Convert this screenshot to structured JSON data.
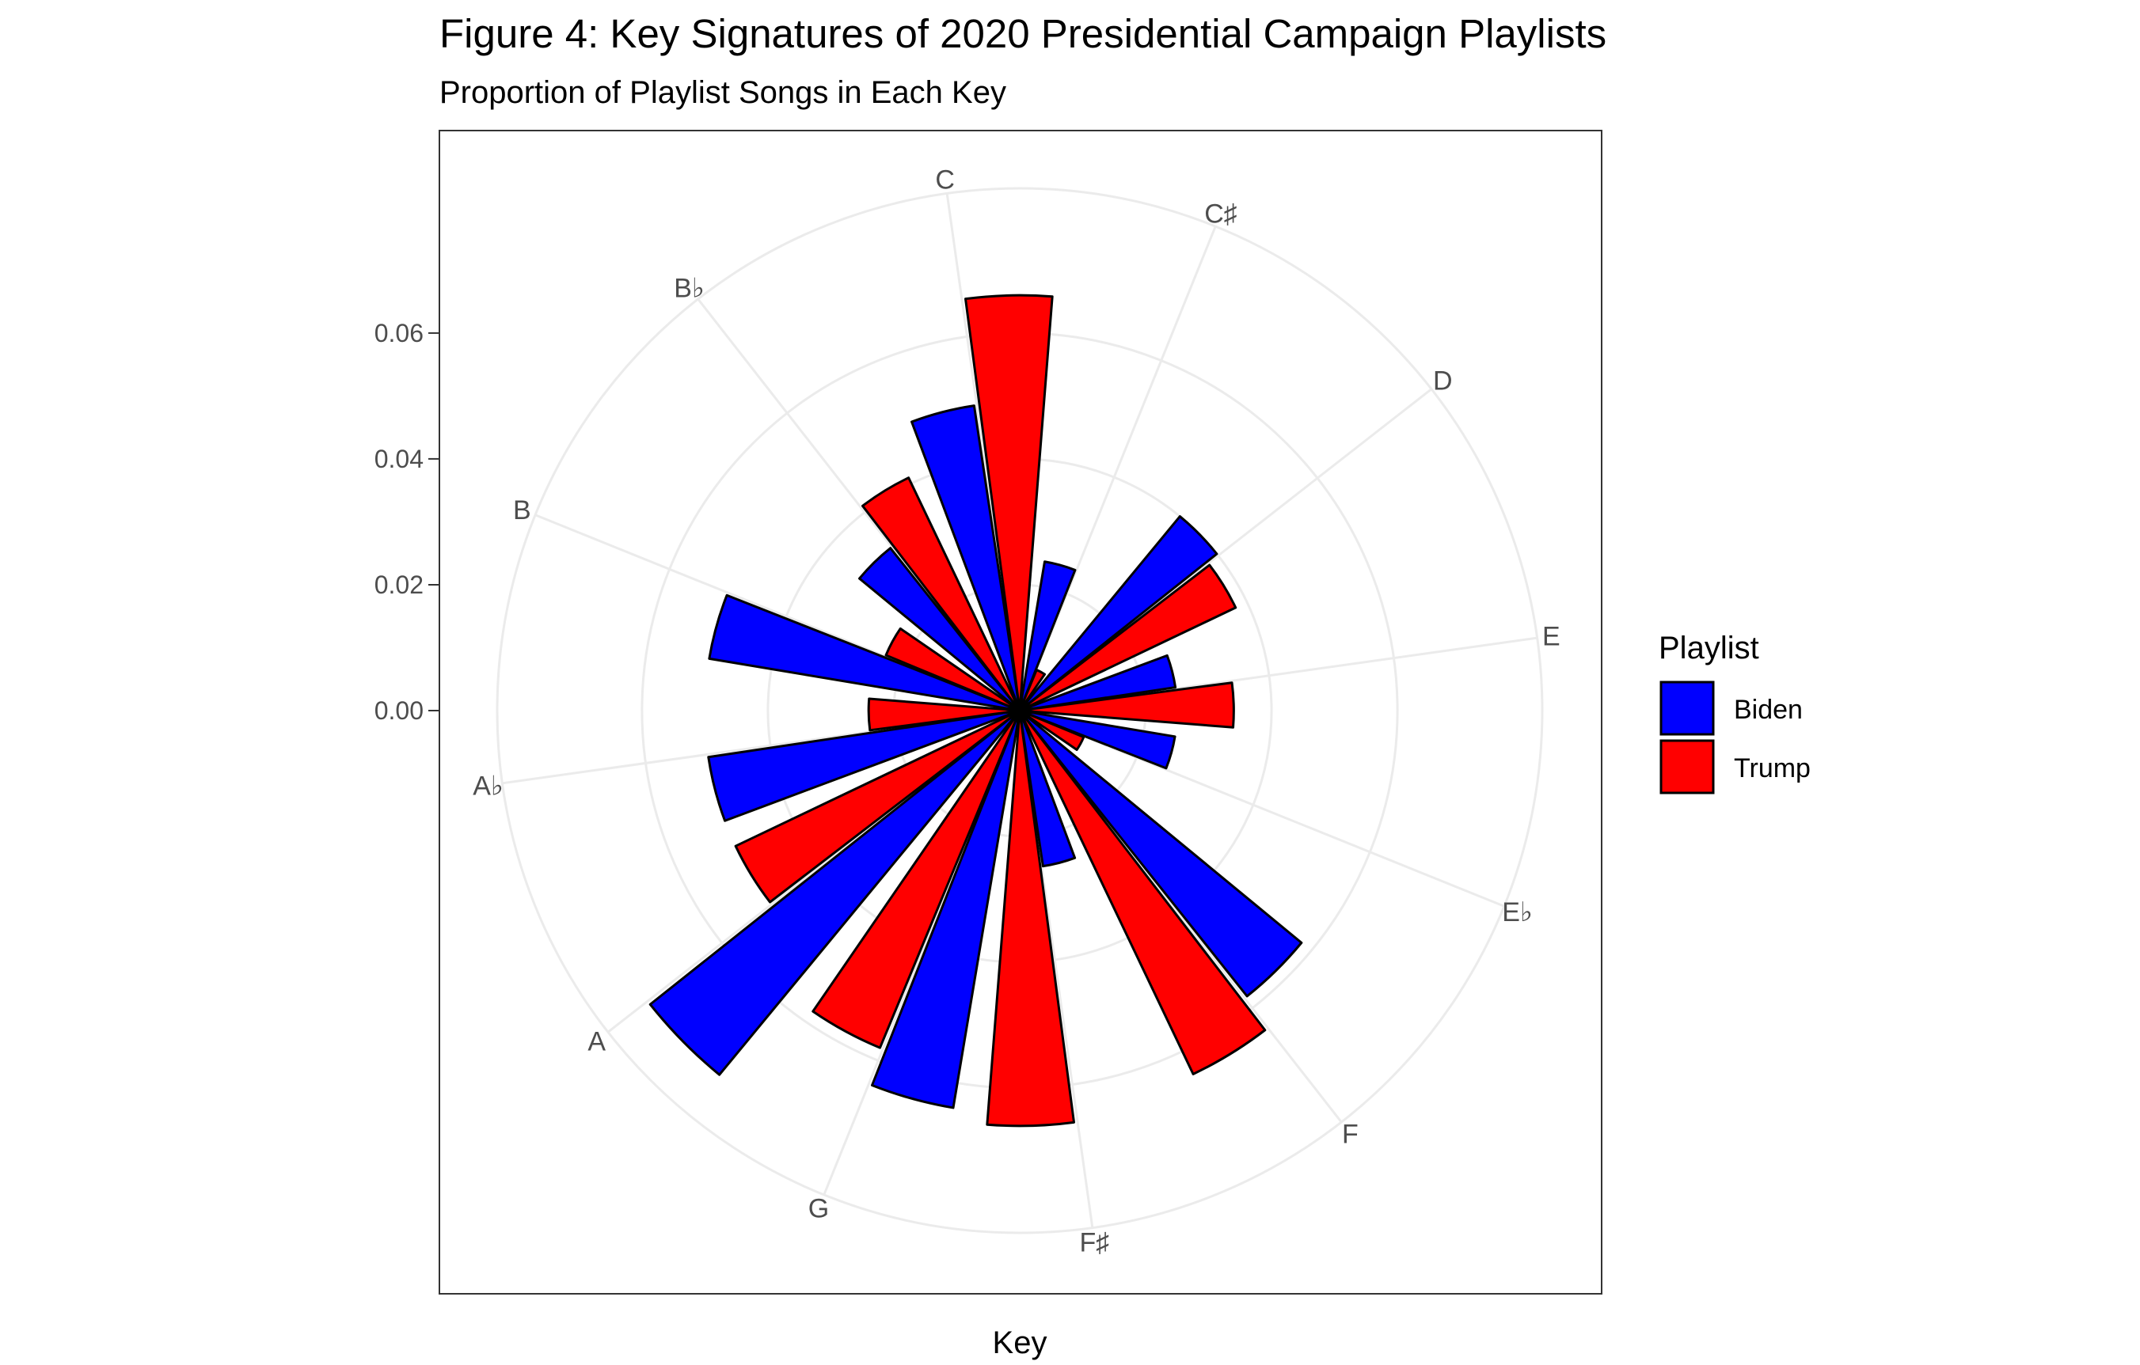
{
  "chart_data": {
    "type": "bar",
    "coord": "polar",
    "title": "Figure 4: Key Signatures of 2020 Presidential Campaign Playlists",
    "subtitle": "Proportion of Playlist Songs in Each Key",
    "xlabel": "Key",
    "ylabel": "",
    "categories": [
      "C",
      "C♯",
      "D",
      "E",
      "E♭",
      "F",
      "F♯",
      "G",
      "A",
      "A♭",
      "B",
      "B♭"
    ],
    "series": [
      {
        "name": "Biden",
        "color": "#0000ff",
        "values": [
          0.049,
          0.024,
          0.04,
          0.025,
          0.025,
          0.058,
          0.025,
          0.064,
          0.075,
          0.05,
          0.05,
          0.033
        ]
      },
      {
        "name": "Trump",
        "color": "#ff0000",
        "values": [
          0.066,
          0.007,
          0.038,
          0.034,
          0.011,
          0.064,
          0.066,
          0.058,
          0.05,
          0.024,
          0.023,
          0.041
        ]
      }
    ],
    "yticks": [
      "0.00",
      "0.02",
      "0.04",
      "0.06"
    ],
    "ylim": [
      0,
      0.083
    ],
    "grid": true,
    "legend": {
      "title": "Playlist",
      "position": "right"
    }
  }
}
